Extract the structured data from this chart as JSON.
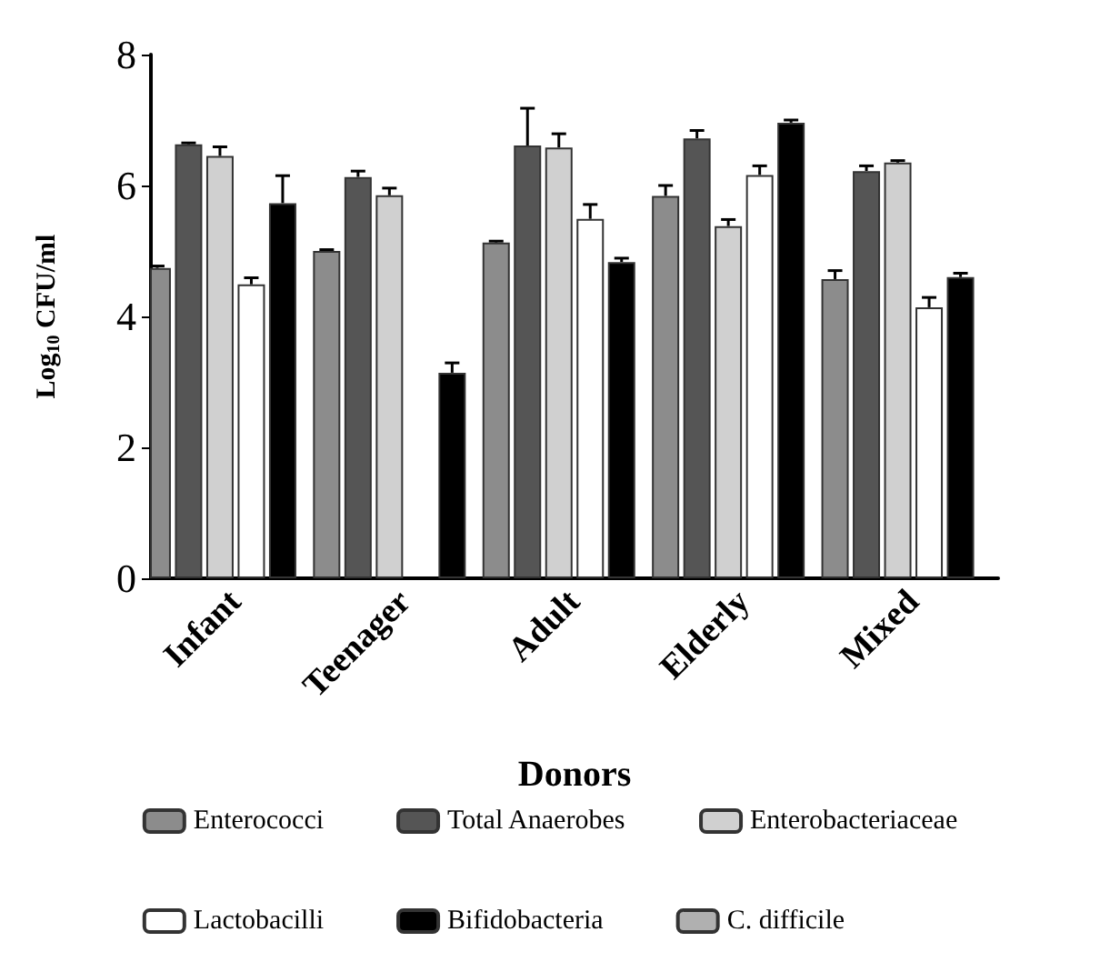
{
  "chart_data": {
    "type": "bar",
    "xlabel": "Donors",
    "ylabel": "Log$_{10}$ CFU/ml",
    "categories": [
      "Infant",
      "Teenager",
      "Adult",
      "Elderly",
      "Mixed"
    ],
    "ylim": [
      0,
      8
    ],
    "yticks": [
      0,
      2,
      4,
      6,
      8
    ],
    "grid": false,
    "legend": "bottom",
    "series": [
      {
        "name": "Enterococci",
        "color": "#8c8c8c",
        "values": [
          4.74,
          5.0,
          5.13,
          5.84,
          4.57
        ],
        "errors": [
          [
            4.74,
            4.77
          ],
          [
            5.0,
            5.02
          ],
          [
            5.13,
            5.15
          ],
          [
            5.84,
            6.0
          ],
          [
            4.57,
            4.7
          ]
        ]
      },
      {
        "name": "Total Anaerobes",
        "color": "#555555",
        "values": [
          6.63,
          6.13,
          6.61,
          6.72,
          6.22
        ],
        "errors": [
          [
            6.63,
            6.65
          ],
          [
            6.13,
            6.22
          ],
          [
            6.61,
            7.18
          ],
          [
            6.72,
            6.84
          ],
          [
            6.22,
            6.3
          ]
        ]
      },
      {
        "name": "Enterobacteriaceae",
        "color": "#d0d0d0",
        "values": [
          6.45,
          5.85,
          6.58,
          5.38,
          6.35
        ],
        "errors": [
          [
            6.45,
            6.59
          ],
          [
            5.85,
            5.96
          ],
          [
            6.58,
            6.79
          ],
          [
            5.38,
            5.48
          ],
          [
            6.35,
            6.38
          ]
        ]
      },
      {
        "name": "Lactobacilli",
        "color": "#ffffff",
        "values": [
          4.49,
          null,
          5.49,
          6.16,
          4.14
        ],
        "errors": [
          [
            4.49,
            4.59
          ],
          null,
          [
            5.49,
            5.71
          ],
          [
            6.16,
            6.3
          ],
          [
            4.14,
            4.29
          ]
        ]
      },
      {
        "name": "Bifidobacteria",
        "color": "#000000",
        "values": [
          5.73,
          3.14,
          4.83,
          6.96,
          4.6
        ],
        "errors": [
          [
            5.73,
            6.15
          ],
          [
            3.14,
            3.29
          ],
          [
            4.83,
            4.89
          ],
          [
            6.96,
            7.0
          ],
          [
            4.6,
            4.66
          ]
        ]
      },
      {
        "name": "C. difficile",
        "color": "#b0b0b0",
        "values": [
          null,
          null,
          null,
          null,
          null
        ]
      }
    ]
  }
}
